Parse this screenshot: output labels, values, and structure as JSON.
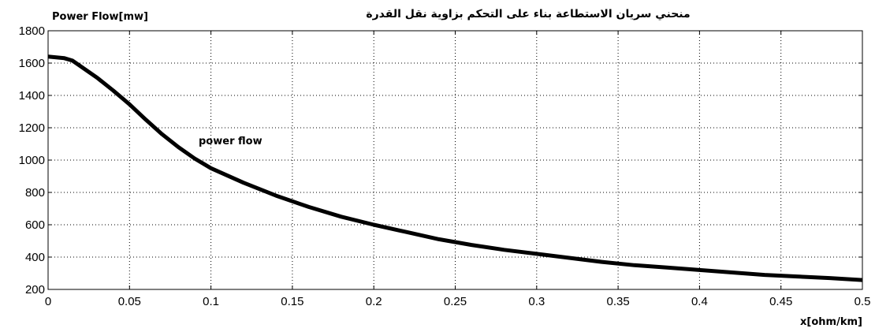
{
  "chart_data": {
    "type": "line",
    "title": "منحني سريان الاستطاعة بناء على التحكم بزاوية نقل القدرة",
    "ylabel": "Power Flow[mw]",
    "xlabel": "x[ohm/km]",
    "annotation": "power flow",
    "xlim": [
      0,
      0.5
    ],
    "ylim": [
      200,
      1800
    ],
    "xticks": [
      0,
      0.05,
      0.1,
      0.15,
      0.2,
      0.25,
      0.3,
      0.35,
      0.4,
      0.45,
      0.5
    ],
    "xtick_labels": [
      "0",
      "0.05",
      "0.1",
      "0.15",
      "0.2",
      "0.25",
      "0.3",
      "0.35",
      "0.4",
      "0.45",
      "0.5"
    ],
    "yticks": [
      200,
      400,
      600,
      800,
      1000,
      1200,
      1400,
      1600,
      1800
    ],
    "ytick_labels": [
      "200",
      "400",
      "600",
      "800",
      "1000",
      "1200",
      "1400",
      "1600",
      "1800"
    ],
    "grid": true,
    "line_color": "#000000",
    "series": [
      {
        "x": [
          0,
          0.01,
          0.015,
          0.02,
          0.03,
          0.04,
          0.05,
          0.06,
          0.07,
          0.08,
          0.09,
          0.1,
          0.12,
          0.14,
          0.16,
          0.18,
          0.2,
          0.22,
          0.24,
          0.26,
          0.28,
          0.3,
          0.32,
          0.34,
          0.36,
          0.38,
          0.4,
          0.42,
          0.44,
          0.46,
          0.48,
          0.5
        ],
        "y": [
          1640,
          1630,
          1615,
          1580,
          1510,
          1430,
          1345,
          1250,
          1160,
          1080,
          1010,
          950,
          860,
          780,
          710,
          650,
          600,
          555,
          510,
          475,
          445,
          420,
          395,
          370,
          350,
          335,
          320,
          305,
          290,
          280,
          270,
          258
        ]
      }
    ]
  }
}
